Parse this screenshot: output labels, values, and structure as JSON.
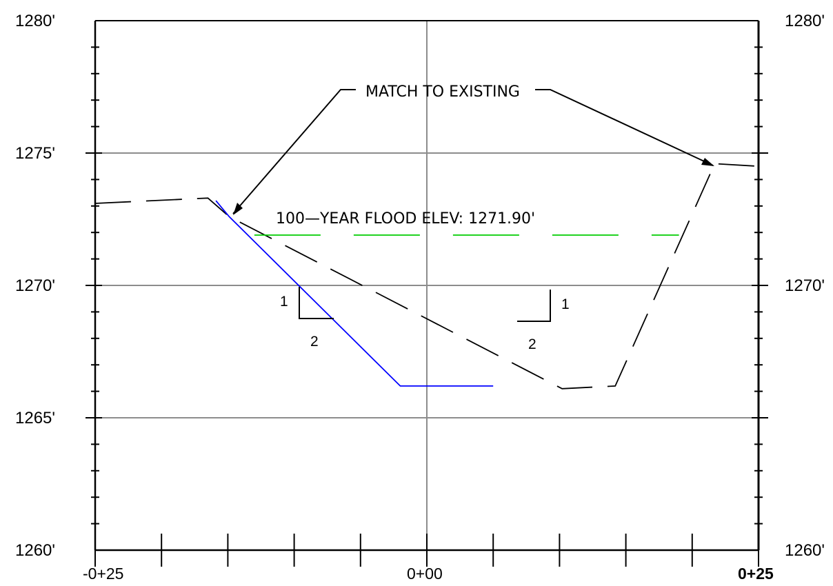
{
  "chart_data": {
    "type": "line",
    "title": "",
    "xlabel": "",
    "ylabel": "",
    "xlim": [
      -25,
      25
    ],
    "ylim": [
      1260,
      1280
    ],
    "x_tick_labels": [
      "-0+25",
      "0+00",
      "0+25"
    ],
    "y_tick_labels": [
      "1280'",
      "1275'",
      "1270'",
      "1265'",
      "1260'"
    ],
    "grid": true,
    "series": [
      {
        "style": "dashed",
        "color": "#000000",
        "points": [
          [
            -25,
            1273.1
          ],
          [
            -16.5,
            1273.3
          ],
          [
            -14.9,
            1272.6
          ],
          [
            10.2,
            1266.1
          ],
          [
            14.2,
            1266.2
          ],
          [
            21.7,
            1274.6
          ],
          [
            25,
            1274.5
          ]
        ]
      },
      {
        "style": "solid",
        "color": "#0000ff",
        "points": [
          [
            -15.9,
            1273.2
          ],
          [
            -14.9,
            1272.6
          ],
          [
            -2.0,
            1266.2
          ],
          [
            1.5,
            1266.2
          ],
          [
            5.0,
            1266.2
          ]
        ]
      },
      {
        "style": "dashed",
        "color": "#00cc00",
        "points": [
          [
            -13.0,
            1271.9
          ],
          [
            19.0,
            1271.9
          ]
        ]
      }
    ],
    "annotations": {
      "match_text": "MATCH TO EXISTING",
      "flood_text": "100—YEAR FLOOD ELEV: 1271.90'",
      "slope_left_rise": "1",
      "slope_left_run": "2",
      "slope_right_rise": "1",
      "slope_right_run": "2"
    }
  },
  "colors": {
    "grid": "#8c8c8c",
    "ink": "#000000",
    "proposed": "#0000ff",
    "flood": "#00cc00"
  }
}
